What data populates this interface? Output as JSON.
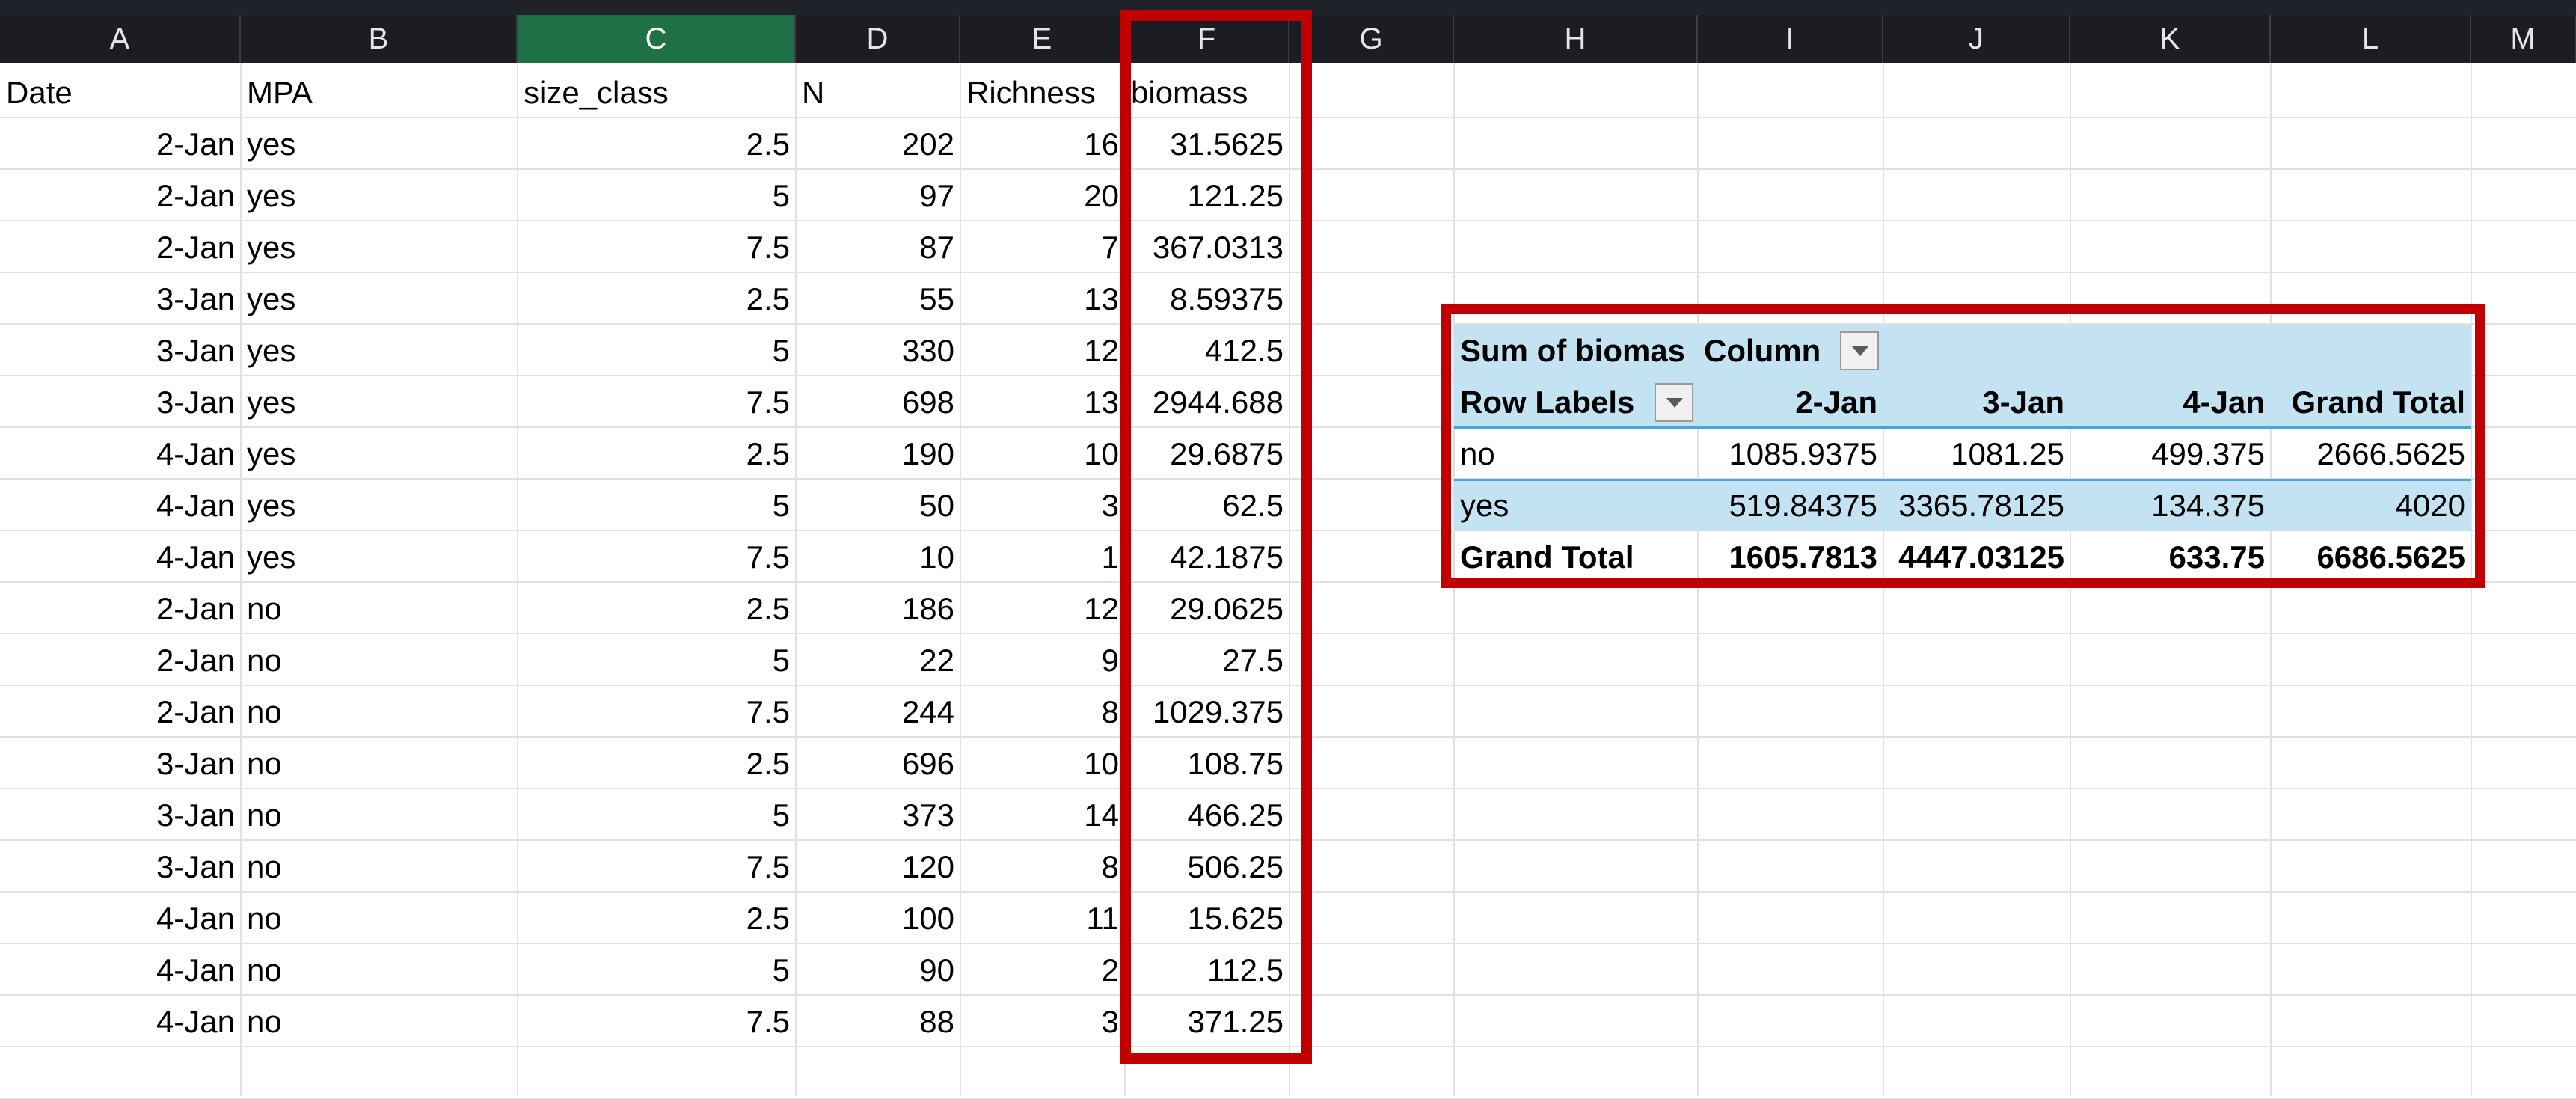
{
  "columns": [
    "A",
    "B",
    "C",
    "D",
    "E",
    "F",
    "G",
    "H",
    "I",
    "J",
    "K",
    "L",
    "M"
  ],
  "selected_column": "C",
  "headers": [
    "Date",
    "MPA",
    "size_class",
    "N",
    "Richness",
    "biomass"
  ],
  "rows": [
    [
      "2-Jan",
      "yes",
      "2.5",
      "202",
      "16",
      "31.5625"
    ],
    [
      "2-Jan",
      "yes",
      "5",
      "97",
      "20",
      "121.25"
    ],
    [
      "2-Jan",
      "yes",
      "7.5",
      "87",
      "7",
      "367.0313"
    ],
    [
      "3-Jan",
      "yes",
      "2.5",
      "55",
      "13",
      "8.59375"
    ],
    [
      "3-Jan",
      "yes",
      "5",
      "330",
      "12",
      "412.5"
    ],
    [
      "3-Jan",
      "yes",
      "7.5",
      "698",
      "13",
      "2944.688"
    ],
    [
      "4-Jan",
      "yes",
      "2.5",
      "190",
      "10",
      "29.6875"
    ],
    [
      "4-Jan",
      "yes",
      "5",
      "50",
      "3",
      "62.5"
    ],
    [
      "4-Jan",
      "yes",
      "7.5",
      "10",
      "1",
      "42.1875"
    ],
    [
      "2-Jan",
      "no",
      "2.5",
      "186",
      "12",
      "29.0625"
    ],
    [
      "2-Jan",
      "no",
      "5",
      "22",
      "9",
      "27.5"
    ],
    [
      "2-Jan",
      "no",
      "7.5",
      "244",
      "8",
      "1029.375"
    ],
    [
      "3-Jan",
      "no",
      "2.5",
      "696",
      "10",
      "108.75"
    ],
    [
      "3-Jan",
      "no",
      "5",
      "373",
      "14",
      "466.25"
    ],
    [
      "3-Jan",
      "no",
      "7.5",
      "120",
      "8",
      "506.25"
    ],
    [
      "4-Jan",
      "no",
      "2.5",
      "100",
      "11",
      "15.625"
    ],
    [
      "4-Jan",
      "no",
      "5",
      "90",
      "2",
      "112.5"
    ],
    [
      "4-Jan",
      "no",
      "7.5",
      "88",
      "3",
      "371.25"
    ]
  ],
  "pivot": {
    "title": "Sum of biomas",
    "column_label": "Column",
    "row_labels": "Row Labels",
    "col_headers": [
      "2-Jan",
      "3-Jan",
      "4-Jan",
      "Grand Total"
    ],
    "rows": [
      {
        "label": "no",
        "values": [
          "1085.9375",
          "1081.25",
          "499.375",
          "2666.5625"
        ]
      },
      {
        "label": "yes",
        "values": [
          "519.84375",
          "3365.78125",
          "134.375",
          "4020"
        ]
      }
    ],
    "total": {
      "label": "Grand Total",
      "values": [
        "1605.7813",
        "4447.03125",
        "633.75",
        "6686.5625"
      ]
    }
  },
  "highlight_color": "#c00000",
  "selected_header_color": "#1e7145",
  "pivot_fill_color": "#c3e3f3"
}
